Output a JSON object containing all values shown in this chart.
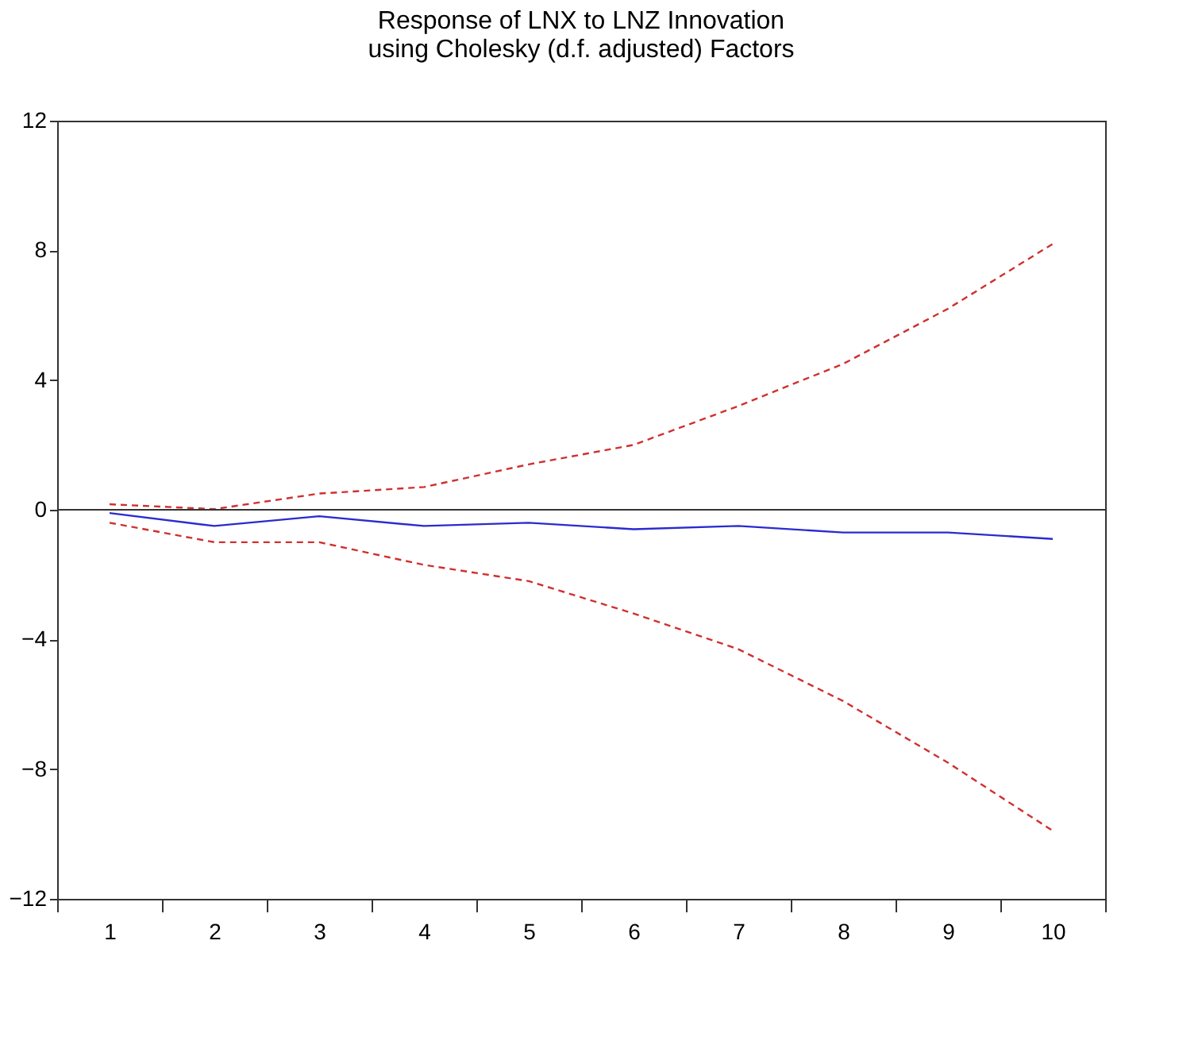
{
  "chart_data": {
    "type": "line",
    "title": [
      "Response of LNX to LNZ Innovation",
      "using Cholesky (d.f. adjusted) Factors"
    ],
    "categories": [
      "1",
      "2",
      "3",
      "4",
      "5",
      "6",
      "7",
      "8",
      "9",
      "10"
    ],
    "series": [
      {
        "color": "#2b2bd0",
        "line_style": "solid",
        "values": [
          -0.1,
          -0.5,
          -0.2,
          -0.5,
          -0.4,
          -0.6,
          -0.5,
          -0.7,
          -0.7,
          -0.9
        ]
      },
      {
        "color": "#d03030",
        "line_style": "dashed",
        "values": [
          0.17,
          0.02,
          0.5,
          0.7,
          1.4,
          2.0,
          3.2,
          4.5,
          6.2,
          8.2
        ]
      },
      {
        "color": "#d03030",
        "line_style": "dashed",
        "values": [
          -0.4,
          -1.0,
          -1.0,
          -1.7,
          -2.2,
          -3.2,
          -4.3,
          -5.9,
          -7.8,
          -9.9
        ]
      }
    ],
    "ylim": [
      -12,
      12
    ],
    "yticks": [
      -12,
      -8,
      -4,
      0,
      4,
      8,
      12
    ],
    "ref_lines": [
      {
        "axis": "y",
        "value": 0,
        "color": "#333333"
      }
    ],
    "marker": "none"
  }
}
